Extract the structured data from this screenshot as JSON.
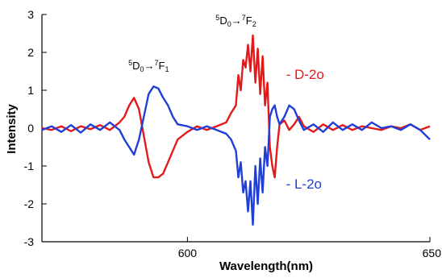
{
  "chart_data": {
    "type": "line",
    "title": "",
    "xlabel": "Wavelength(nm)",
    "ylabel": "Intensity",
    "xlim": [
      570,
      650
    ],
    "ylim": [
      -3,
      3
    ],
    "x_ticks": [
      600,
      650
    ],
    "y_ticks": [
      -3,
      -2,
      -1,
      0,
      1,
      2,
      3
    ],
    "grid": false,
    "legend": "inline-right",
    "series": [
      {
        "name": "D-2o",
        "legend_text": "- D-2o",
        "color": "#e31a1c",
        "x": [
          570,
          572,
          574,
          576,
          578,
          580,
          582,
          584,
          586,
          587,
          588,
          589,
          590,
          591,
          592,
          593,
          594,
          595,
          596,
          597,
          598,
          600,
          602,
          604,
          606,
          608,
          609,
          610,
          610.5,
          611,
          611.5,
          612,
          612.5,
          613,
          613.5,
          614,
          614.5,
          615,
          615.5,
          616,
          616.5,
          617,
          617.5,
          618,
          618.5,
          619,
          620,
          621,
          622,
          623,
          624,
          626,
          628,
          630,
          632,
          634,
          636,
          638,
          640,
          642,
          644,
          646,
          648,
          650
        ],
        "y": [
          0.0,
          -0.05,
          0.05,
          -0.08,
          0.05,
          -0.03,
          0.08,
          -0.05,
          0.15,
          0.3,
          0.6,
          0.8,
          0.5,
          -0.2,
          -0.9,
          -1.3,
          -1.3,
          -1.2,
          -0.9,
          -0.6,
          -0.3,
          -0.1,
          0.05,
          -0.05,
          0.05,
          0.15,
          0.4,
          0.6,
          1.4,
          1.0,
          1.8,
          1.6,
          2.2,
          1.5,
          2.45,
          1.2,
          2.1,
          0.9,
          1.9,
          0.6,
          1.2,
          -0.5,
          -1.0,
          -1.3,
          -0.5,
          0.1,
          0.2,
          -0.05,
          0.1,
          0.3,
          0.05,
          -0.1,
          0.1,
          -0.05,
          0.08,
          -0.05,
          0.05,
          0.0,
          -0.05,
          0.05,
          0.0,
          0.1,
          -0.05,
          0.05
        ]
      },
      {
        "name": "L-2o",
        "legend_text": "- L-2o",
        "color": "#1f3fd6",
        "x": [
          570,
          572,
          574,
          576,
          578,
          580,
          582,
          584,
          586,
          587,
          588,
          589,
          590,
          591,
          592,
          593,
          594,
          595,
          596,
          597,
          598,
          600,
          602,
          604,
          606,
          608,
          609,
          610,
          610.5,
          611,
          611.5,
          612,
          612.5,
          613,
          613.5,
          614,
          614.5,
          615,
          615.5,
          616,
          616.5,
          617,
          617.5,
          618,
          618.5,
          619,
          620,
          621,
          622,
          623,
          624,
          626,
          628,
          630,
          632,
          634,
          636,
          638,
          640,
          642,
          644,
          646,
          648,
          650
        ],
        "y": [
          -0.05,
          0.05,
          -0.1,
          0.08,
          -0.12,
          0.1,
          -0.05,
          0.15,
          -0.05,
          -0.3,
          -0.5,
          -0.7,
          -0.3,
          0.3,
          0.9,
          1.1,
          1.05,
          0.8,
          0.6,
          0.3,
          0.1,
          0.05,
          -0.05,
          0.05,
          -0.05,
          -0.15,
          -0.3,
          -0.6,
          -1.3,
          -0.9,
          -1.7,
          -1.4,
          -2.2,
          -1.4,
          -2.55,
          -1.0,
          -2.0,
          -0.8,
          -1.7,
          -0.5,
          -1.0,
          0.3,
          0.5,
          0.6,
          0.3,
          0.1,
          0.3,
          0.6,
          0.5,
          0.2,
          -0.05,
          0.1,
          -0.1,
          0.15,
          -0.05,
          0.1,
          -0.05,
          0.15,
          0.0,
          0.05,
          -0.05,
          0.1,
          -0.05,
          -0.3
        ]
      }
    ],
    "annotations": [
      {
        "id": "f1",
        "prefix": "5",
        "main": "D",
        "sub1": "0",
        "arrow": "→",
        "sup2": "7",
        "main2": "F",
        "sub2": "1",
        "x": 592,
        "y": 1.55
      },
      {
        "id": "f2",
        "prefix": "5",
        "main": "D",
        "sub1": "0",
        "arrow": "→",
        "sup2": "7",
        "main2": "F",
        "sub2": "2",
        "x": 610,
        "y": 2.75
      }
    ]
  }
}
